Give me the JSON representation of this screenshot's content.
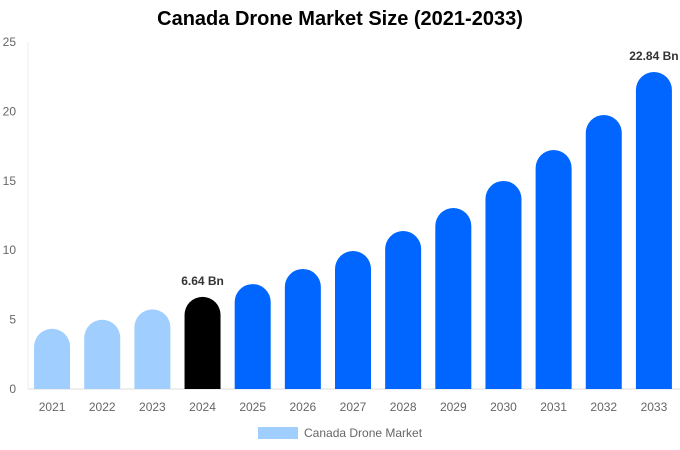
{
  "chart_data": {
    "type": "bar",
    "title": "Canada Drone Market Size (2021-2033)",
    "categories": [
      "2021",
      "2022",
      "2023",
      "2024",
      "2025",
      "2026",
      "2027",
      "2028",
      "2029",
      "2030",
      "2031",
      "2032",
      "2033"
    ],
    "series": [
      {
        "name": "Canada Drone Market",
        "values": [
          4.34,
          4.99,
          5.74,
          6.64,
          7.56,
          8.65,
          9.94,
          11.38,
          13.04,
          14.99,
          17.22,
          19.74,
          22.84
        ]
      }
    ],
    "bar_colors": [
      "#a0cfff",
      "#a0cfff",
      "#a0cfff",
      "#000000",
      "#0066ff",
      "#0066ff",
      "#0066ff",
      "#0066ff",
      "#0066ff",
      "#0066ff",
      "#0066ff",
      "#0066ff",
      "#0066ff"
    ],
    "data_labels": [
      {
        "category": "2024",
        "text": "6.64 Bn"
      },
      {
        "category": "2033",
        "text": "22.84 Bn"
      }
    ],
    "ylim": [
      0,
      25
    ],
    "yticks": [
      0,
      5,
      10,
      15,
      20,
      25
    ],
    "xlabel": "",
    "ylabel": "",
    "grid": false,
    "legend_position": "bottom"
  }
}
